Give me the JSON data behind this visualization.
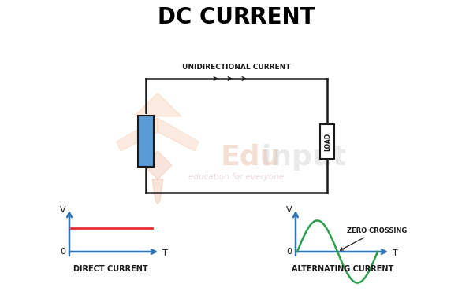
{
  "title": "DC CURRENT",
  "title_fontsize": 20,
  "title_fontweight": "bold",
  "bg_color": "#ffffff",
  "circuit_color": "#1a1a1a",
  "battery_color": "#5b9bd5",
  "dc_line_color": "#e63030",
  "ac_wave_color": "#2e9e4f",
  "axis_color": "#2e75b6",
  "label_dc": "DIRECT CURRENT",
  "label_ac": "ALTERNATING CURRENT",
  "label_unidirectional": "UNIDIRECTIONAL CURRENT",
  "label_load": "LOAD",
  "label_zero_crossing": "ZERO CROSSING",
  "label_v_dc": "V",
  "label_0_dc": "0",
  "label_t_dc": "T",
  "label_v_ac": "V",
  "label_0_ac": "0",
  "label_t_ac": "T",
  "watermark_color_logo": "#f5c8a8",
  "watermark_color_text": "#e8c0a8",
  "watermark_color_gray": "#cccccc"
}
